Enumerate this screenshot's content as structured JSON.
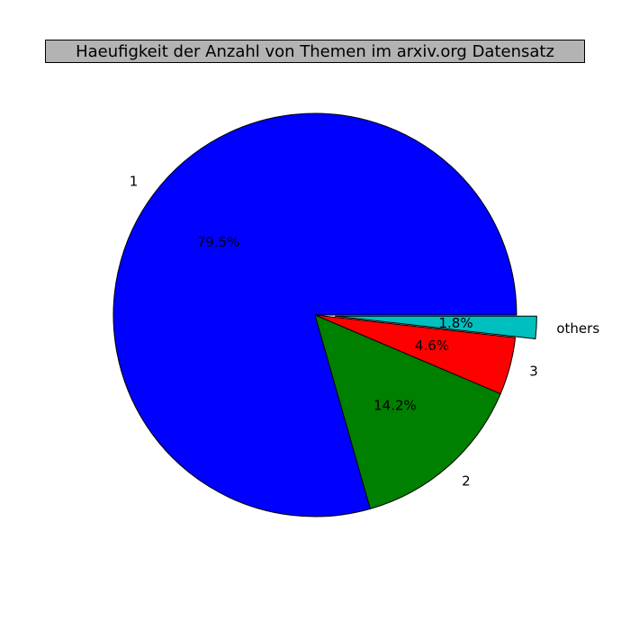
{
  "chart_data": {
    "type": "pie",
    "title": "Haeufigkeit der Anzahl von Themen im arxiv.org Datensatz",
    "categories": [
      "1",
      "2",
      "3",
      "others"
    ],
    "values": [
      79.5,
      14.2,
      4.6,
      1.8
    ],
    "pct_labels": [
      "79.5%",
      "14.2%",
      "4.6%",
      "1.8%"
    ],
    "colors": [
      "#0000ff",
      "#008000",
      "#ff0000",
      "#00bfbf"
    ],
    "explode": [
      0,
      0,
      0,
      0.1
    ],
    "start_angle": 0,
    "direction": "counterclockwise",
    "title_background": "#b3b3b3"
  }
}
